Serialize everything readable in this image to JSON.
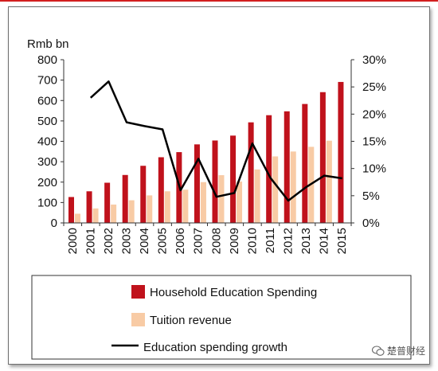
{
  "colors": {
    "spending": "#c0121c",
    "tuition": "#f8cba5",
    "growth": "#000000",
    "topline": "#d21f1f"
  },
  "watermark": {
    "text": "楚普财经",
    "icon": "wechat-icon"
  },
  "chart_data": {
    "type": "bar",
    "categories": [
      "2000",
      "2001",
      "2002",
      "2003",
      "2004",
      "2005",
      "2006",
      "2007",
      "2008",
      "2009",
      "2010",
      "2011",
      "2012",
      "2013",
      "2014",
      "2015"
    ],
    "series": [
      {
        "name": "Household Education Spending",
        "type": "bar",
        "axis": "left",
        "values": [
          127,
          155,
          197,
          235,
          280,
          322,
          347,
          385,
          404,
          428,
          493,
          528,
          547,
          583,
          641,
          691
        ]
      },
      {
        "name": "Tuition revenue",
        "type": "bar",
        "axis": "left",
        "values": [
          45,
          71,
          90,
          111,
          135,
          155,
          163,
          200,
          234,
          203,
          262,
          326,
          350,
          373,
          403,
          null
        ]
      },
      {
        "name": "Education spending growth",
        "type": "line",
        "axis": "right",
        "values": [
          null,
          23,
          26,
          18.5,
          17.8,
          17.2,
          6,
          11.8,
          4.8,
          5.5,
          14.6,
          8.3,
          4.1,
          6.6,
          8.7,
          8.2
        ]
      }
    ],
    "ylabel_left": "Rmb bn",
    "ylim_left": [
      0,
      800
    ],
    "yticks_left": [
      "0",
      "100",
      "200",
      "300",
      "400",
      "500",
      "600",
      "700",
      "800"
    ],
    "ylim_right": [
      0,
      30
    ],
    "yticks_right": [
      "0%",
      "5%",
      "10%",
      "15%",
      "20%",
      "25%",
      "30%"
    ],
    "grid": false,
    "legend_position": "bottom"
  }
}
